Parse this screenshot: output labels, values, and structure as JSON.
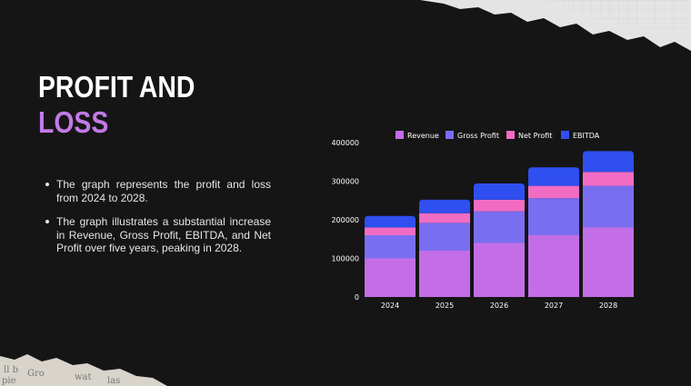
{
  "slide": {
    "title_line1": "PROFIT AND",
    "title_line2": "LOSS",
    "bullets": [
      "The graph represents the profit and loss from 2024 to 2028.",
      "The graph illustrates a substantial increase in Revenue, Gross Profit, EBITDA, and Net Profit over five years, peaking in 2028."
    ]
  },
  "colors": {
    "background": "#151515",
    "title_accent": "#c27ae6",
    "revenue": "#c36ee6",
    "gross_profit": "#7a6ef0",
    "net_profit": "#f26cc4",
    "ebitda": "#2f4ff0"
  },
  "chart_data": {
    "type": "bar",
    "stacked": true,
    "categories": [
      "2024",
      "2025",
      "2026",
      "2027",
      "2028"
    ],
    "series": [
      {
        "name": "Revenue",
        "color": "#c36ee6",
        "values": [
          100000,
          120000,
          140000,
          160000,
          180000
        ]
      },
      {
        "name": "Gross Profit",
        "color": "#7a6ef0",
        "values": [
          60000,
          72000,
          82000,
          96000,
          108000
        ]
      },
      {
        "name": "Net Profit",
        "color": "#f26cc4",
        "values": [
          20000,
          25000,
          30000,
          32000,
          36000
        ]
      },
      {
        "name": "EBITDA",
        "color": "#2f4ff0",
        "values": [
          30000,
          35000,
          42000,
          48000,
          54000
        ]
      }
    ],
    "yticks": [
      "0",
      "100000",
      "200000",
      "300000",
      "400000"
    ],
    "ylim": [
      0,
      400000
    ],
    "legend_position": "top",
    "grid": false
  }
}
